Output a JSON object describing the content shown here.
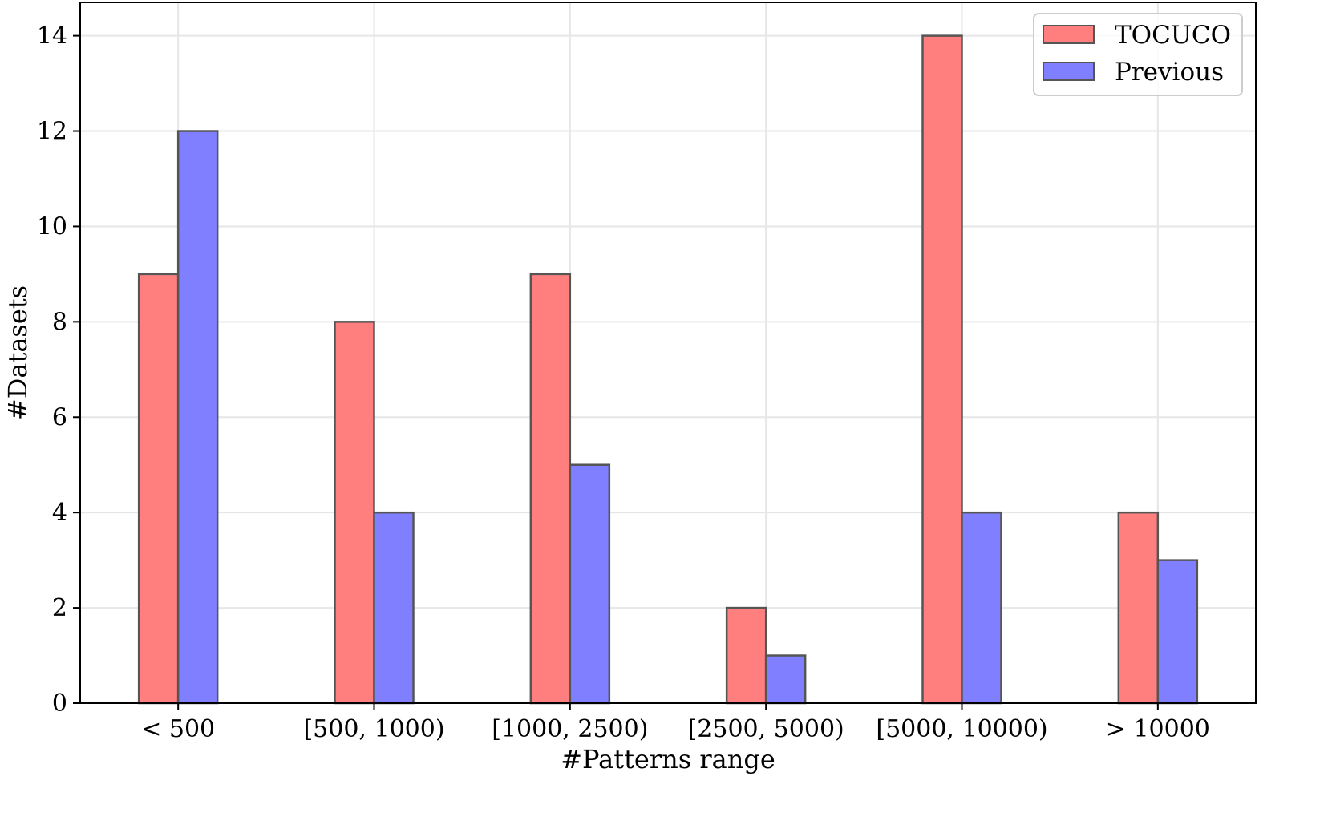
{
  "chart_data": {
    "type": "bar",
    "title": "",
    "xlabel": "#Patterns range",
    "ylabel": "#Datasets",
    "categories": [
      "< 500",
      "[500, 1000)",
      "[1000, 2500)",
      "[2500, 5000)",
      "[5000, 10000)",
      "> 10000"
    ],
    "series": [
      {
        "name": "TOCUCO",
        "values": [
          9,
          8,
          9,
          2,
          14,
          4
        ],
        "color": "#ff7f7f"
      },
      {
        "name": "Previous",
        "values": [
          12,
          4,
          5,
          1,
          4,
          3
        ],
        "color": "#7f7fff"
      }
    ],
    "ylim": [
      0,
      14.7
    ],
    "yticks": [
      0,
      2,
      4,
      6,
      8,
      10,
      12,
      14
    ],
    "grid": true,
    "legend_position": "top-right",
    "colors": {
      "bar_edge": "#555555",
      "grid": "#e6e6e6",
      "axis": "#000000"
    }
  }
}
